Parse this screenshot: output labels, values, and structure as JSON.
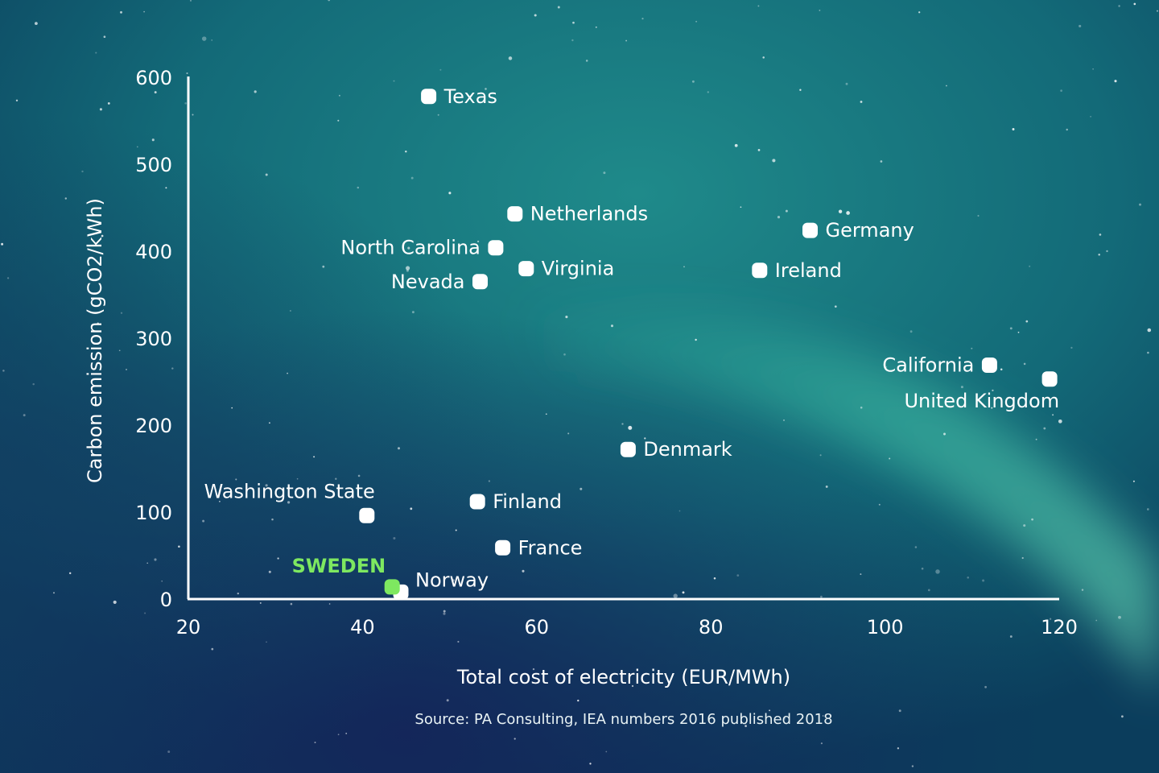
{
  "chart_data": {
    "type": "scatter",
    "xlabel": "Total cost of electricity (EUR/MWh)",
    "ylabel": "Carbon emission (gCO2/kWh)",
    "xlim": [
      20,
      120
    ],
    "ylim": [
      0,
      600
    ],
    "x_ticks": [
      20,
      40,
      60,
      80,
      100,
      120
    ],
    "y_ticks": [
      0,
      100,
      200,
      300,
      400,
      500,
      600
    ],
    "grid": false,
    "source": "Source: PA Consulting, IEA numbers 2016 published 2018",
    "colors": {
      "point": "#ffffff",
      "highlight": "#7ee860",
      "axis": "#ffffff"
    },
    "points": [
      {
        "label": "Texas",
        "x": 47.6,
        "y": 578,
        "label_side": "right"
      },
      {
        "label": "Netherlands",
        "x": 57.5,
        "y": 443,
        "label_side": "right"
      },
      {
        "label": "North Carolina",
        "x": 55.3,
        "y": 404,
        "label_side": "left"
      },
      {
        "label": "Virginia",
        "x": 58.8,
        "y": 380,
        "label_side": "right"
      },
      {
        "label": "Nevada",
        "x": 53.5,
        "y": 365,
        "label_side": "left"
      },
      {
        "label": "Germany",
        "x": 91.4,
        "y": 424,
        "label_side": "right"
      },
      {
        "label": "Ireland",
        "x": 85.6,
        "y": 378,
        "label_side": "right"
      },
      {
        "label": "California",
        "x": 112.0,
        "y": 269,
        "label_side": "left"
      },
      {
        "label": "United Kingdom",
        "x": 118.9,
        "y": 253,
        "label_side": "below-left"
      },
      {
        "label": "Denmark",
        "x": 70.5,
        "y": 172,
        "label_side": "right"
      },
      {
        "label": "Washington State",
        "x": 40.5,
        "y": 96,
        "label_side": "above-left"
      },
      {
        "label": "Finland",
        "x": 53.2,
        "y": 112,
        "label_side": "right"
      },
      {
        "label": "France",
        "x": 56.1,
        "y": 59,
        "label_side": "right"
      },
      {
        "label": "Norway",
        "x": 44.4,
        "y": 8,
        "label_side": "above-right"
      },
      {
        "label": "SWEDEN",
        "x": 43.4,
        "y": 14,
        "label_side": "above-left",
        "highlight": true
      }
    ]
  }
}
